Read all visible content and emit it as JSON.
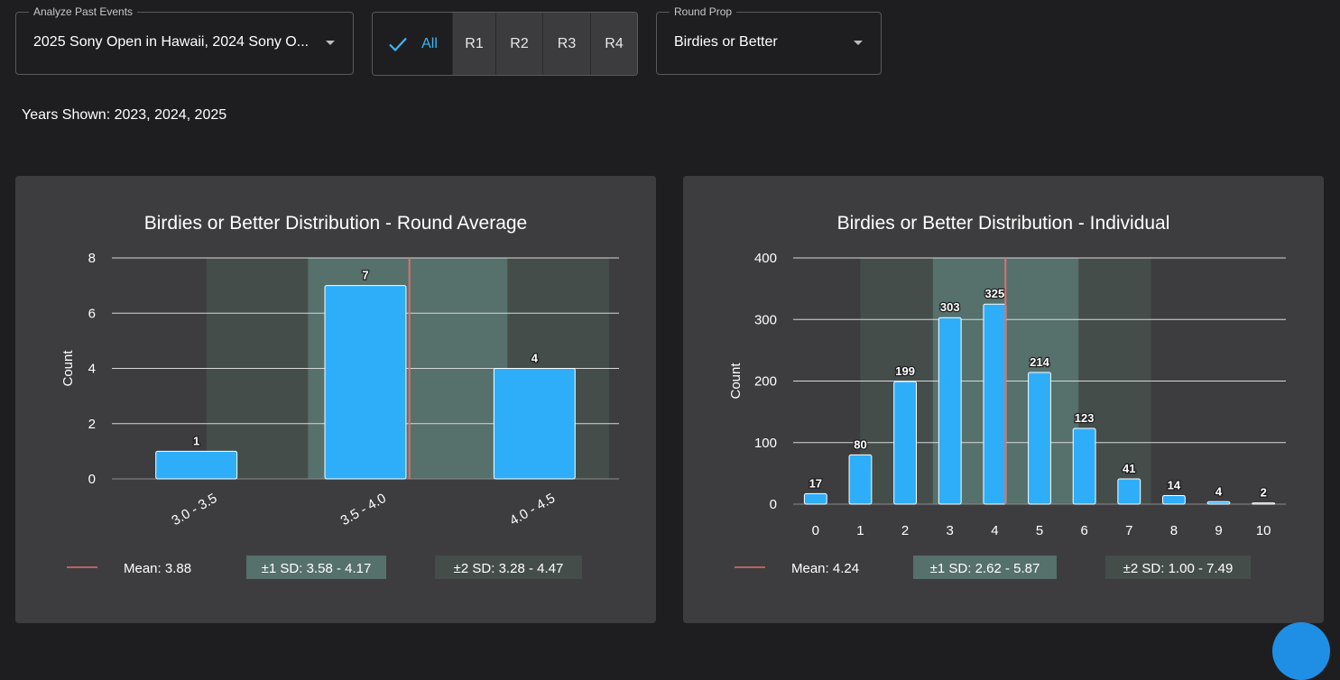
{
  "filters": {
    "events": {
      "label": "Analyze Past Events",
      "value": "2025 Sony Open in Hawaii, 2024 Sony O..."
    },
    "rounds": {
      "items": [
        "All",
        "R1",
        "R2",
        "R3",
        "R4"
      ],
      "selected": "All"
    },
    "prop": {
      "label": "Round Prop",
      "value": "Birdies or Better"
    }
  },
  "years_shown": "Years Shown: 2023, 2024, 2025",
  "colors": {
    "bar": "#2eaef9",
    "mean": "#e0706c",
    "sd1": "#56706c",
    "sd2": "#454d4b",
    "panel": "#3d3d3f"
  },
  "chart_data": [
    {
      "type": "bar",
      "title": "Birdies or Better Distribution - Round Average",
      "xlabel": "",
      "ylabel": "Count",
      "categories": [
        "3.0 - 3.5",
        "3.5 - 4.0",
        "4.0 - 4.5"
      ],
      "values": [
        1,
        7,
        4
      ],
      "ylim": [
        0,
        8
      ],
      "yticks": [
        0,
        2,
        4,
        6,
        8
      ],
      "mean": 3.88,
      "sd1": [
        3.58,
        4.17
      ],
      "sd2": [
        3.28,
        4.47
      ],
      "legend": {
        "mean": "Mean: 3.88",
        "sd1": "±1 SD: 3.58 - 4.17",
        "sd2": "±2 SD: 3.28 - 4.47"
      }
    },
    {
      "type": "bar",
      "title": "Birdies or Better Distribution - Individual",
      "xlabel": "",
      "ylabel": "Count",
      "categories": [
        "0",
        "1",
        "2",
        "3",
        "4",
        "5",
        "6",
        "7",
        "8",
        "9",
        "10"
      ],
      "values": [
        17,
        80,
        199,
        303,
        325,
        214,
        123,
        41,
        14,
        4,
        2
      ],
      "ylim": [
        0,
        400
      ],
      "yticks": [
        0,
        100,
        200,
        300,
        400
      ],
      "mean": 4.24,
      "sd1": [
        2.62,
        5.87
      ],
      "sd2": [
        1.0,
        7.49
      ],
      "legend": {
        "mean": "Mean: 4.24",
        "sd1": "±1 SD: 2.62 - 5.87",
        "sd2": "±2 SD: 1.00 - 7.49"
      }
    }
  ]
}
